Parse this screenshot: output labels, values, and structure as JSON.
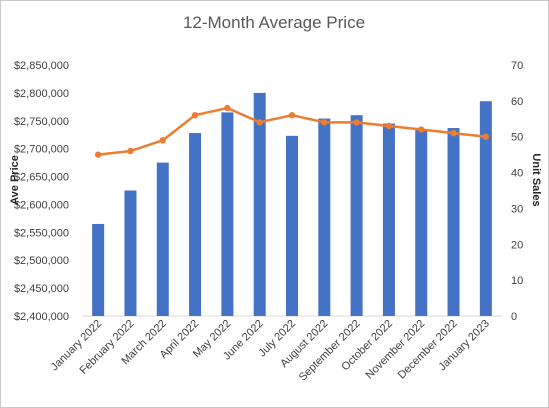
{
  "chart_data": {
    "type": "bar",
    "title": "12-Month Average Price",
    "ylabel": "Ave Price",
    "y2label": "Unit Sales",
    "categories": [
      "January 2022",
      "February 2022",
      "March 2022",
      "April 2022",
      "May 2022",
      "June 2022",
      "July 2022",
      "August 2022",
      "September 2022",
      "October 2022",
      "November 2022",
      "December 2022",
      "January 2023"
    ],
    "ylim": [
      2400000,
      2850000
    ],
    "y_ticks": [
      2400000,
      2450000,
      2500000,
      2550000,
      2600000,
      2650000,
      2700000,
      2750000,
      2800000,
      2850000
    ],
    "y_tick_labels": [
      "$2,400,000",
      "$2,450,000",
      "$2,500,000",
      "$2,550,000",
      "$2,600,000",
      "$2,650,000",
      "$2,700,000",
      "$2,750,000",
      "$2,800,000",
      "$2,850,000"
    ],
    "y2lim": [
      0,
      70
    ],
    "y2_ticks": [
      0,
      10,
      20,
      30,
      40,
      50,
      60,
      70
    ],
    "y2_tick_labels": [
      "0",
      "10",
      "20",
      "30",
      "40",
      "50",
      "60",
      "70"
    ],
    "grid": false,
    "legend": "none",
    "series": [
      {
        "type": "bar",
        "axis": "left",
        "color": "#4472c4",
        "values": [
          2565000,
          2625000,
          2675000,
          2728000,
          2765000,
          2800000,
          2723000,
          2754000,
          2760000,
          2745000,
          2735000,
          2737000,
          2785000
        ]
      },
      {
        "type": "line",
        "axis": "right",
        "color": "#ed7d31",
        "values": [
          45,
          46,
          49,
          56,
          58,
          54,
          56,
          54,
          54,
          53,
          52,
          51,
          50
        ]
      }
    ]
  }
}
